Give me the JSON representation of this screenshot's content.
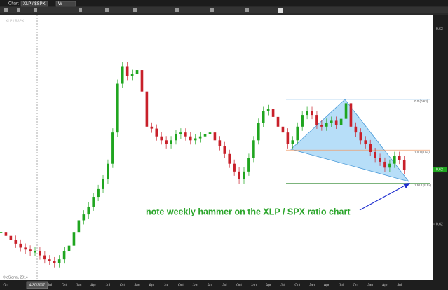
{
  "toolbar": {
    "window_title": "Chart",
    "symbol": "XLP / $SPX",
    "interval": "W"
  },
  "chart_data": {
    "type": "candlestick",
    "title": "XLP / $SPX",
    "annotation": "note weekly hammer on the XLP / SPX ratio chart",
    "crosshair_date": "4/30/2007",
    "copyright": "© eSignal, 2014",
    "last_price_label": "0.62",
    "up_color": "#1fa51f",
    "down_color": "#c8202a",
    "ylim": [
      0.6172,
      0.6302
    ],
    "yticks": [
      0.62,
      0.63
    ],
    "fib_levels": [
      {
        "label": "0.0 (0.63)",
        "value": 0.6264,
        "color": "#7ab8e8"
      },
      {
        "label": "1.00 (0.62)",
        "value": 0.6238,
        "color": "#f0a070"
      },
      {
        "label": "1.618 (0.62)",
        "value": 0.6221,
        "color": "#6aaa6a"
      }
    ],
    "categories": [
      null,
      "Oct",
      null,
      null,
      null,
      null,
      null,
      null,
      null,
      null,
      "Jul",
      null,
      null,
      "Oct",
      null,
      null,
      "Jan",
      null,
      null,
      "Apr",
      null,
      null,
      "Jul",
      null,
      null,
      "Oct",
      null,
      null,
      "Jan",
      null,
      null,
      "Apr",
      null,
      null,
      "Jul",
      null,
      null,
      "Oct",
      null,
      null,
      "Jan",
      null,
      null,
      "Apr",
      null,
      null,
      "Jul",
      null,
      null,
      "Oct",
      null,
      null,
      "Jan",
      null,
      null,
      "Apr",
      null,
      null,
      "Jul",
      null,
      null,
      "Oct",
      null,
      null,
      "Jan",
      null,
      null,
      "Apr",
      null,
      null,
      "Jul",
      null,
      null,
      "Oct",
      null,
      null,
      "Jan",
      null,
      null,
      "Apr",
      null,
      null,
      "Jul",
      null
    ],
    "values": [
      0.6196,
      0.6194,
      0.6192,
      0.619,
      0.6188,
      0.6187,
      0.6186,
      0.6186,
      0.6184,
      0.6182,
      0.6181,
      0.618,
      0.6182,
      0.6186,
      0.6189,
      0.6196,
      0.6202,
      0.6205,
      0.6209,
      0.6214,
      0.6218,
      0.6223,
      0.6231,
      0.6247,
      0.6272,
      0.6281,
      0.6276,
      0.6277,
      0.6279,
      0.6268,
      0.625,
      0.6249,
      0.6245,
      0.6243,
      0.6241,
      0.6243,
      0.6246,
      0.6247,
      0.6245,
      0.6243,
      0.6244,
      0.6245,
      0.6246,
      0.6247,
      0.6243,
      0.624,
      0.6236,
      0.6231,
      0.6227,
      0.6223,
      0.6227,
      0.6234,
      0.6243,
      0.6252,
      0.6258,
      0.6259,
      0.6255,
      0.625,
      0.6247,
      0.6241,
      0.6243,
      0.625,
      0.6256,
      0.6258,
      0.6256,
      0.6251,
      0.625,
      0.6252,
      0.6253,
      0.6251,
      0.6254,
      0.6262,
      0.625,
      0.6247,
      0.6243,
      0.6241,
      0.6237,
      0.6234,
      0.6232,
      0.6229,
      0.6231,
      0.6235,
      0.6233,
      0.6228
    ]
  }
}
